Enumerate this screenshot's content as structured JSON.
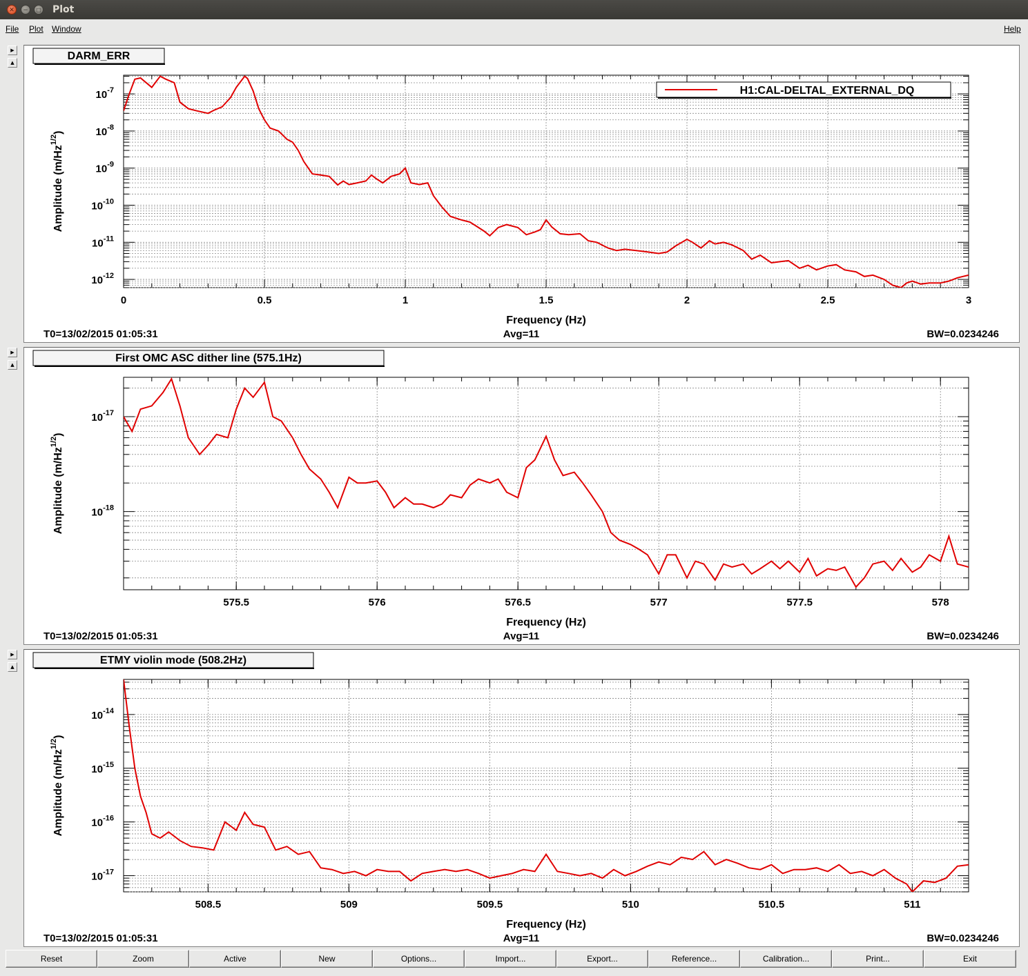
{
  "window": {
    "title": "Plot"
  },
  "menu": {
    "items": [
      "File",
      "Plot",
      "Window"
    ],
    "help": "Help"
  },
  "colors": {
    "trace": "#e00000",
    "grid": "#888888"
  },
  "panels": [
    {
      "title": "DARM_ERR",
      "legend": "H1:CAL-DELTAL_EXTERNAL_DQ",
      "xlabel": "Frequency (Hz)",
      "ylabel_main": "Amplitude (m/Hz",
      "ylabel_sup": "1/2",
      "ylabel_tail": ")",
      "t0": "T0=13/02/2015 01:05:31",
      "avg": "Avg=11",
      "bw": "BW=0.0234246"
    },
    {
      "title": "First OMC ASC dither line (575.1Hz)",
      "xlabel": "Frequency (Hz)",
      "ylabel_main": "Amplitude (m/Hz",
      "ylabel_sup": "1/2",
      "ylabel_tail": ")",
      "t0": "T0=13/02/2015 01:05:31",
      "avg": "Avg=11",
      "bw": "BW=0.0234246"
    },
    {
      "title": "ETMY violin mode (508.2Hz)",
      "xlabel": "Frequency (Hz)",
      "ylabel_main": "Amplitude (m/Hz",
      "ylabel_sup": "1/2",
      "ylabel_tail": ")",
      "t0": "T0=13/02/2015 01:05:31",
      "avg": "Avg=11",
      "bw": "BW=0.0234246"
    }
  ],
  "buttons": [
    "Reset",
    "Zoom",
    "Active",
    "New",
    "Options...",
    "Import...",
    "Export...",
    "Reference...",
    "Calibration...",
    "Print...",
    "Exit"
  ],
  "chart_data": [
    {
      "type": "line",
      "title": "DARM_ERR",
      "xlabel": "Frequency (Hz)",
      "ylabel": "Amplitude (m/Hz^1/2)",
      "xlim": [
        0,
        3
      ],
      "ylim": [
        6e-13,
        3.2e-07
      ],
      "yscale": "log",
      "grid": true,
      "legend_position": "top-right",
      "x_ticks": [
        "0",
        "0.5",
        "1",
        "1.5",
        "2",
        "2.5",
        "3"
      ],
      "y_ticks": [
        "10^-12",
        "10^-11",
        "10^-10",
        "10^-9",
        "10^-8",
        "10^-7"
      ],
      "series": [
        {
          "name": "H1:CAL-DELTAL_EXTERNAL_DQ",
          "x": [
            0.0,
            0.02,
            0.04,
            0.06,
            0.1,
            0.13,
            0.15,
            0.18,
            0.2,
            0.23,
            0.26,
            0.3,
            0.32,
            0.35,
            0.38,
            0.4,
            0.43,
            0.44,
            0.46,
            0.48,
            0.5,
            0.52,
            0.55,
            0.58,
            0.6,
            0.62,
            0.64,
            0.67,
            0.7,
            0.73,
            0.76,
            0.78,
            0.8,
            0.83,
            0.86,
            0.88,
            0.9,
            0.92,
            0.95,
            0.98,
            1.0,
            1.02,
            1.05,
            1.08,
            1.1,
            1.13,
            1.16,
            1.2,
            1.23,
            1.26,
            1.28,
            1.3,
            1.33,
            1.36,
            1.4,
            1.43,
            1.46,
            1.48,
            1.5,
            1.52,
            1.55,
            1.58,
            1.62,
            1.65,
            1.68,
            1.72,
            1.75,
            1.78,
            1.82,
            1.86,
            1.9,
            1.93,
            1.96,
            2.0,
            2.02,
            2.05,
            2.08,
            2.1,
            2.13,
            2.16,
            2.2,
            2.23,
            2.26,
            2.3,
            2.33,
            2.36,
            2.4,
            2.43,
            2.46,
            2.5,
            2.53,
            2.56,
            2.6,
            2.63,
            2.66,
            2.7,
            2.73,
            2.76,
            2.78,
            2.8,
            2.83,
            2.86,
            2.9,
            2.93,
            2.96,
            2.98,
            3.0
          ],
          "y": [
            3.5e-08,
            1e-07,
            2.5e-07,
            2.7e-07,
            1.5e-07,
            3e-07,
            2.5e-07,
            2e-07,
            6e-08,
            4e-08,
            3.5e-08,
            3e-08,
            3.6e-08,
            4.5e-08,
            8e-08,
            1.5e-07,
            3e-07,
            2.6e-07,
            1.2e-07,
            4e-08,
            2e-08,
            1.2e-08,
            1e-08,
            6e-09,
            5e-09,
            3e-09,
            1.5e-09,
            7e-10,
            6.5e-10,
            6e-10,
            3.5e-10,
            4.5e-10,
            3.6e-10,
            4e-10,
            4.5e-10,
            6.5e-10,
            5e-10,
            4e-10,
            6e-10,
            7e-10,
            1e-09,
            4e-10,
            3.6e-10,
            4e-10,
            1.8e-10,
            9e-11,
            5e-11,
            4e-11,
            3.5e-11,
            2.5e-11,
            2e-11,
            1.5e-11,
            2.5e-11,
            3e-11,
            2.5e-11,
            1.6e-11,
            1.9e-11,
            2.2e-11,
            4e-11,
            2.6e-11,
            1.7e-11,
            1.6e-11,
            1.7e-11,
            1.1e-11,
            1e-11,
            7e-12,
            6e-12,
            6.5e-12,
            6e-12,
            5.5e-12,
            5e-12,
            5.5e-12,
            8e-12,
            1.2e-11,
            1e-11,
            7e-12,
            1.1e-11,
            9e-12,
            1e-11,
            8.5e-12,
            6e-12,
            3.5e-12,
            4.5e-12,
            2.8e-12,
            3e-12,
            3.2e-12,
            2e-12,
            2.4e-12,
            1.8e-12,
            2.3e-12,
            2.5e-12,
            1.8e-12,
            1.6e-12,
            1.2e-12,
            1.3e-12,
            1e-12,
            7e-13,
            6e-13,
            8e-13,
            9e-13,
            7.5e-13,
            8e-13,
            8e-13,
            9e-13,
            1.1e-12,
            1.2e-12,
            1.3e-12
          ]
        }
      ]
    },
    {
      "type": "line",
      "title": "First OMC ASC dither line (575.1Hz)",
      "xlabel": "Frequency (Hz)",
      "ylabel": "Amplitude (m/Hz^1/2)",
      "xlim": [
        575.1,
        578.1
      ],
      "ylim": [
        1.5e-19,
        2.6e-17
      ],
      "yscale": "log",
      "grid": true,
      "x_ticks": [
        "575.5",
        "576",
        "576.5",
        "577",
        "577.5",
        "578"
      ],
      "y_ticks": [
        "10^-18",
        "10^-17"
      ],
      "series": [
        {
          "name": "",
          "x": [
            575.1,
            575.13,
            575.16,
            575.2,
            575.24,
            575.27,
            575.3,
            575.33,
            575.37,
            575.4,
            575.43,
            575.47,
            575.5,
            575.53,
            575.56,
            575.6,
            575.63,
            575.66,
            575.7,
            575.73,
            575.76,
            575.8,
            575.83,
            575.86,
            575.9,
            575.93,
            575.96,
            576.0,
            576.03,
            576.06,
            576.1,
            576.13,
            576.16,
            576.2,
            576.23,
            576.26,
            576.3,
            576.33,
            576.36,
            576.4,
            576.43,
            576.46,
            576.5,
            576.53,
            576.56,
            576.6,
            576.63,
            576.66,
            576.7,
            576.73,
            576.76,
            576.8,
            576.83,
            576.86,
            576.9,
            576.93,
            576.96,
            577.0,
            577.03,
            577.06,
            577.1,
            577.13,
            577.16,
            577.2,
            577.23,
            577.26,
            577.3,
            577.33,
            577.36,
            577.4,
            577.43,
            577.46,
            577.5,
            577.53,
            577.56,
            577.6,
            577.63,
            577.66,
            577.7,
            577.73,
            577.76,
            577.8,
            577.83,
            577.86,
            577.9,
            577.93,
            577.96,
            578.0,
            578.03,
            578.06,
            578.1
          ],
          "y": [
            1e-17,
            7e-18,
            1.2e-17,
            1.3e-17,
            1.8e-17,
            2.5e-17,
            1.3e-17,
            6e-18,
            4e-18,
            5e-18,
            6.5e-18,
            6e-18,
            1.2e-17,
            2e-17,
            1.6e-17,
            2.3e-17,
            1e-17,
            9e-18,
            6e-18,
            4e-18,
            2.8e-18,
            2.2e-18,
            1.6e-18,
            1.1e-18,
            2.3e-18,
            2e-18,
            2e-18,
            2.1e-18,
            1.6e-18,
            1.1e-18,
            1.4e-18,
            1.2e-18,
            1.2e-18,
            1.1e-18,
            1.2e-18,
            1.5e-18,
            1.4e-18,
            1.9e-18,
            2.2e-18,
            2e-18,
            2.2e-18,
            1.6e-18,
            1.4e-18,
            2.9e-18,
            3.5e-18,
            6.2e-18,
            3.5e-18,
            2.4e-18,
            2.6e-18,
            2e-18,
            1.5e-18,
            1e-18,
            6e-19,
            5e-19,
            4.5e-19,
            4e-19,
            3.5e-19,
            2.2e-19,
            3.5e-19,
            3.5e-19,
            2e-19,
            3e-19,
            2.8e-19,
            1.9e-19,
            2.8e-19,
            2.6e-19,
            2.8e-19,
            2.2e-19,
            2.5e-19,
            3e-19,
            2.5e-19,
            3e-19,
            2.3e-19,
            3.2e-19,
            2.1e-19,
            2.5e-19,
            2.4e-19,
            2.6e-19,
            1.6e-19,
            2e-19,
            2.8e-19,
            3e-19,
            2.4e-19,
            3.2e-19,
            2.3e-19,
            2.6e-19,
            3.5e-19,
            3e-19,
            5.5e-19,
            2.8e-19,
            2.6e-19
          ]
        }
      ]
    },
    {
      "type": "line",
      "title": "ETMY violin mode (508.2Hz)",
      "xlabel": "Frequency (Hz)",
      "ylabel": "Amplitude (m/Hz^1/2)",
      "xlim": [
        508.2,
        511.2
      ],
      "ylim": [
        5e-18,
        4.5e-14
      ],
      "yscale": "log",
      "grid": true,
      "x_ticks": [
        "508.5",
        "509",
        "509.5",
        "510",
        "510.5",
        "511"
      ],
      "y_ticks": [
        "10^-17",
        "10^-16",
        "10^-15",
        "10^-14"
      ],
      "series": [
        {
          "name": "",
          "x": [
            508.2,
            508.22,
            508.24,
            508.26,
            508.28,
            508.3,
            508.33,
            508.36,
            508.4,
            508.44,
            508.48,
            508.52,
            508.56,
            508.6,
            508.63,
            508.66,
            508.7,
            508.74,
            508.78,
            508.82,
            508.86,
            508.9,
            508.94,
            508.98,
            509.02,
            509.06,
            509.1,
            509.14,
            509.18,
            509.22,
            509.26,
            509.3,
            509.34,
            509.38,
            509.42,
            509.46,
            509.5,
            509.54,
            509.58,
            509.62,
            509.66,
            509.7,
            509.74,
            509.78,
            509.82,
            509.86,
            509.9,
            509.94,
            509.98,
            510.02,
            510.06,
            510.1,
            510.14,
            510.18,
            510.22,
            510.26,
            510.3,
            510.34,
            510.38,
            510.42,
            510.46,
            510.5,
            510.54,
            510.58,
            510.62,
            510.66,
            510.7,
            510.74,
            510.78,
            510.82,
            510.86,
            510.9,
            510.94,
            510.98,
            511.0,
            511.04,
            511.08,
            511.12,
            511.16,
            511.2
          ],
          "y": [
            4.5e-14,
            6e-15,
            1e-15,
            3e-16,
            1.5e-16,
            6e-17,
            5e-17,
            6.5e-17,
            4.5e-17,
            3.5e-17,
            3.3e-17,
            3e-17,
            1e-16,
            7e-17,
            1.5e-16,
            9e-17,
            8e-17,
            3e-17,
            3.5e-17,
            2.5e-17,
            2.8e-17,
            1.4e-17,
            1.3e-17,
            1.1e-17,
            1.2e-17,
            1e-17,
            1.3e-17,
            1.2e-17,
            1.2e-17,
            8e-18,
            1.1e-17,
            1.2e-17,
            1.3e-17,
            1.2e-17,
            1.3e-17,
            1.1e-17,
            9e-18,
            1e-17,
            1.1e-17,
            1.3e-17,
            1.2e-17,
            2.5e-17,
            1.2e-17,
            1.1e-17,
            1e-17,
            1.1e-17,
            9e-18,
            1.3e-17,
            1e-17,
            1.2e-17,
            1.5e-17,
            1.8e-17,
            1.6e-17,
            2.2e-17,
            2e-17,
            2.8e-17,
            1.6e-17,
            2e-17,
            1.7e-17,
            1.4e-17,
            1.3e-17,
            1.6e-17,
            1.1e-17,
            1.3e-17,
            1.3e-17,
            1.4e-17,
            1.2e-17,
            1.6e-17,
            1.1e-17,
            1.2e-17,
            1e-17,
            1.3e-17,
            9e-18,
            7e-18,
            5e-18,
            8e-18,
            7.5e-18,
            9e-18,
            1.5e-17,
            1.6e-17
          ]
        }
      ]
    }
  ]
}
